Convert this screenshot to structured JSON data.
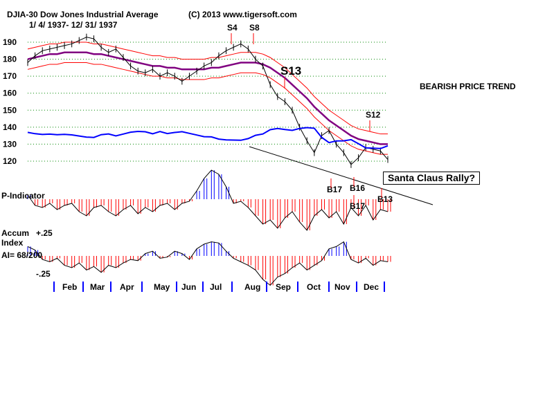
{
  "chart_data": {
    "type": "line",
    "title": "DJIA-30  Dow Jones Industrial Average",
    "date_range": "1/ 4/ 1937- 12/ 31/ 1937",
    "copyright": "(C) 2013 www.tigersoft.com",
    "trend_label": "BEARISH PRICE TREND",
    "annotation": "Santa Claus Rally?",
    "ylim": [
      115,
      195
    ],
    "yticks": [
      190,
      180,
      170,
      160,
      150,
      140,
      130,
      120
    ],
    "months": [
      "Feb",
      "Mar",
      "Apr",
      "May",
      "Jun",
      "Jul",
      "Aug",
      "Sep",
      "Oct",
      "Nov",
      "Dec"
    ],
    "close": [
      178,
      182,
      185,
      186,
      187,
      188,
      189,
      191,
      193,
      192,
      187,
      184,
      186,
      181,
      176,
      173,
      172,
      174,
      170,
      172,
      170,
      167,
      170,
      173,
      176,
      178,
      182,
      185,
      187,
      189,
      186,
      180,
      176,
      165,
      158,
      155,
      150,
      140,
      132,
      125,
      135,
      138,
      130,
      125,
      118,
      122,
      128,
      127,
      126,
      121
    ],
    "ma": [
      180,
      181,
      182,
      183,
      183,
      184,
      184,
      184,
      184,
      183,
      183,
      182,
      181,
      180,
      179,
      178,
      177,
      176,
      176,
      175,
      175,
      174,
      174,
      174,
      174,
      175,
      175,
      176,
      177,
      178,
      178,
      178,
      177,
      175,
      172,
      169,
      165,
      161,
      157,
      152,
      148,
      144,
      141,
      138,
      135,
      133,
      132,
      131,
      130,
      130
    ],
    "signals": [
      {
        "label": "S4",
        "kind": "sell"
      },
      {
        "label": "S8",
        "kind": "sell"
      },
      {
        "label": "S13",
        "kind": "sell"
      },
      {
        "label": "S12",
        "kind": "sell"
      },
      {
        "label": "B17",
        "kind": "buy"
      },
      {
        "label": "B16",
        "kind": "buy"
      },
      {
        "label": "B17",
        "kind": "buy"
      },
      {
        "label": "B13",
        "kind": "buy"
      }
    ],
    "p_indicator": {
      "label": "P-Indicator",
      "values": [
        2,
        -3,
        -4,
        -2,
        -5,
        -3,
        -2,
        -6,
        -8,
        -4,
        -3,
        -6,
        -8,
        -5,
        -3,
        -7,
        -4,
        -6,
        -3,
        -2,
        -5,
        -2,
        -1,
        4,
        10,
        14,
        12,
        6,
        -2,
        -1,
        -4,
        -8,
        -12,
        -10,
        -14,
        -9,
        -6,
        -11,
        -15,
        -8,
        -5,
        -9,
        -6,
        -12,
        -4,
        -8,
        -3,
        -10,
        -5,
        -6
      ]
    },
    "accum_index": {
      "label": "Accum Index",
      "ai": "AI= 68/200",
      "ticks": [
        "+.25",
        "-.25"
      ],
      "values": [
        8,
        5,
        -3,
        -5,
        -2,
        -8,
        -10,
        -6,
        -12,
        -9,
        -14,
        -8,
        -10,
        -6,
        -3,
        -4,
        2,
        4,
        -2,
        -1,
        4,
        2,
        -3,
        6,
        10,
        12,
        11,
        4,
        -2,
        -5,
        -8,
        -12,
        -20,
        -25,
        -18,
        -15,
        -10,
        -6,
        -12,
        -8,
        -4,
        6,
        8,
        12,
        -3,
        -6,
        -2,
        -8,
        -4,
        -5
      ]
    }
  },
  "colors": {
    "price": "#000000",
    "ma": "#800080",
    "band": "#ff0000",
    "rs": "#0000ff",
    "neg": "#ff0000",
    "pos": "#0000ff"
  }
}
